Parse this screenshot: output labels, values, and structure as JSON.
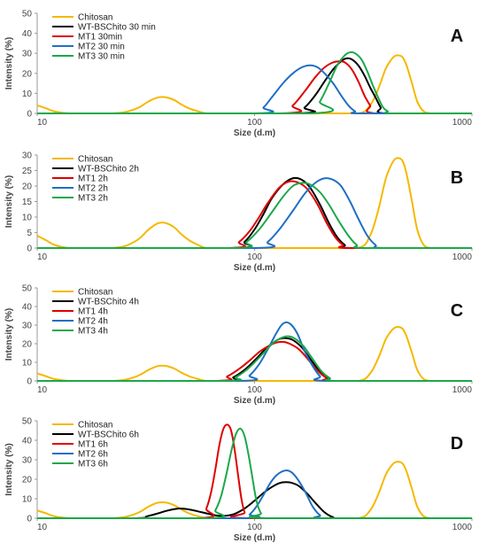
{
  "colors": {
    "Chitosan": "#F5B800",
    "WT": "#000000",
    "MT1": "#E00000",
    "MT2": "#1F6FC5",
    "MT3": "#1BA84A",
    "axis": "#9a9a9a",
    "text": "#444444"
  },
  "chart_data": [
    {
      "type": "line",
      "panel_label": "A",
      "xlabel": "Size (d.m)",
      "ylabel": "Intensity (%)",
      "xscale": "log",
      "xlim": [
        10,
        1000
      ],
      "ylim": [
        0,
        50
      ],
      "xticks": [
        "10",
        "100",
        "1000"
      ],
      "yticks": [
        "0",
        "10",
        "20",
        "30",
        "40",
        "50"
      ],
      "legend_position": "top-left",
      "series": [
        {
          "name": "Chitosan",
          "color": "Chitosan",
          "x": [
            10,
            11,
            12,
            14,
            16,
            18,
            20,
            22,
            25,
            28,
            30,
            32,
            34,
            36,
            38,
            40,
            43,
            46,
            50,
            55,
            60,
            70,
            100,
            200,
            300,
            340,
            370,
            400,
            420,
            440,
            460,
            480,
            500,
            530,
            560,
            600,
            650,
            700,
            1000
          ],
          "y": [
            4,
            2.5,
            1,
            0,
            0,
            0,
            0,
            0,
            0.5,
            2,
            3.5,
            5.5,
            7,
            8,
            8.2,
            7.8,
            6.5,
            4.5,
            2.5,
            1,
            0,
            0,
            0,
            0,
            0,
            4,
            12,
            22,
            26,
            28.5,
            29,
            28,
            24,
            15,
            6,
            1,
            0,
            0,
            0
          ]
        },
        {
          "name": "WT-BSChito 30 min",
          "color": "WT",
          "x": [
            10,
            150,
            170,
            190,
            210,
            230,
            250,
            265,
            280,
            300,
            320,
            340,
            360,
            380,
            400,
            1000
          ],
          "y": [
            0,
            0,
            3,
            9,
            16,
            22,
            26,
            27.5,
            27,
            24,
            19,
            13,
            8,
            3,
            0,
            0
          ]
        },
        {
          "name": "MT1 30min",
          "color": "MT1",
          "x": [
            10,
            130,
            150,
            170,
            190,
            210,
            230,
            245,
            260,
            280,
            300,
            320,
            340,
            360,
            1000
          ],
          "y": [
            0,
            0,
            4,
            11,
            18,
            23,
            25.5,
            26,
            25.5,
            22,
            16,
            9,
            4,
            0,
            0
          ]
        },
        {
          "name": "MT2 30 min",
          "color": "MT2",
          "x": [
            10,
            100,
            110,
            120,
            135,
            150,
            165,
            180,
            195,
            210,
            230,
            250,
            270,
            290,
            310,
            1000
          ],
          "y": [
            0,
            0,
            3,
            8,
            15,
            20,
            23,
            24,
            23,
            20,
            15,
            9,
            4,
            1,
            0,
            0
          ]
        },
        {
          "name": "MT3 30 min",
          "color": "MT3",
          "x": [
            10,
            180,
            200,
            220,
            240,
            260,
            275,
            290,
            310,
            330,
            350,
            370,
            390,
            410,
            430,
            1000
          ],
          "y": [
            0,
            0,
            6,
            15,
            24,
            29,
            30.5,
            30,
            27,
            21,
            14,
            8,
            3,
            1,
            0,
            0
          ]
        }
      ]
    },
    {
      "type": "line",
      "panel_label": "B",
      "xlabel": "Size (d.m)",
      "ylabel": "Intensity (%)",
      "xscale": "log",
      "xlim": [
        10,
        1000
      ],
      "ylim": [
        0,
        30
      ],
      "xticks": [
        "10",
        "100",
        "1000"
      ],
      "yticks": [
        "0",
        "5",
        "10",
        "15",
        "20",
        "25",
        "30"
      ],
      "legend_position": "top-left",
      "series": [
        {
          "name": "Chitosan",
          "color": "Chitosan",
          "x": [
            10,
            11,
            12,
            14,
            16,
            18,
            20,
            22,
            25,
            28,
            30,
            32,
            34,
            36,
            38,
            40,
            43,
            46,
            50,
            55,
            60,
            70,
            100,
            200,
            300,
            340,
            370,
            400,
            420,
            440,
            460,
            480,
            500,
            530,
            560,
            600,
            650,
            700,
            1000
          ],
          "y": [
            4,
            2.5,
            1,
            0,
            0,
            0,
            0,
            0,
            0.5,
            2,
            3.5,
            5.5,
            7,
            8,
            8.2,
            7.8,
            6.5,
            4.5,
            2.5,
            1,
            0,
            0,
            0,
            0,
            0,
            4,
            12,
            22,
            26,
            28.5,
            29,
            28,
            24,
            15,
            6,
            1,
            0,
            0,
            0
          ]
        },
        {
          "name": "WT-BSChito 2h",
          "color": "WT",
          "x": [
            10,
            80,
            90,
            100,
            110,
            120,
            135,
            150,
            165,
            180,
            200,
            220,
            240,
            260,
            280,
            1000
          ],
          "y": [
            0,
            0,
            2,
            6,
            11,
            16,
            20.5,
            22.5,
            22,
            19.5,
            14,
            8,
            3.5,
            1,
            0,
            0
          ]
        },
        {
          "name": "MT1 2h",
          "color": "MT1",
          "x": [
            10,
            75,
            85,
            95,
            105,
            115,
            130,
            145,
            160,
            175,
            195,
            215,
            235,
            255,
            275,
            1000
          ],
          "y": [
            0,
            0,
            2,
            5.5,
            10,
            14.5,
            19.5,
            21.5,
            21,
            19,
            14,
            8,
            3.5,
            1,
            0,
            0
          ]
        },
        {
          "name": "MT2 2h",
          "color": "MT2",
          "x": [
            10,
            100,
            115,
            130,
            150,
            170,
            190,
            210,
            230,
            250,
            275,
            300,
            330,
            360,
            390,
            1000
          ],
          "y": [
            0,
            0,
            2,
            6,
            12,
            17.5,
            21,
            22.5,
            22,
            20,
            15,
            9.5,
            4,
            1,
            0,
            0
          ]
        },
        {
          "name": "MT3 2h",
          "color": "MT3",
          "x": [
            10,
            80,
            92,
            105,
            120,
            135,
            150,
            165,
            180,
            200,
            220,
            245,
            270,
            295,
            320,
            1000
          ],
          "y": [
            0,
            0,
            2,
            6,
            11.5,
            16.5,
            20,
            21,
            20.5,
            18,
            14,
            8.5,
            4,
            1,
            0,
            0
          ]
        }
      ]
    },
    {
      "type": "line",
      "panel_label": "C",
      "xlabel": "Size (d.m)",
      "ylabel": "Intensity (%)",
      "xscale": "log",
      "xlim": [
        10,
        1000
      ],
      "ylim": [
        0,
        50
      ],
      "xticks": [
        "10",
        "100",
        "1000"
      ],
      "yticks": [
        "0",
        "10",
        "20",
        "30",
        "40",
        "50"
      ],
      "legend_position": "top-left",
      "series": [
        {
          "name": "Chitosan",
          "color": "Chitosan",
          "x": [
            10,
            11,
            12,
            14,
            16,
            18,
            20,
            22,
            25,
            28,
            30,
            32,
            34,
            36,
            38,
            40,
            43,
            46,
            50,
            55,
            60,
            70,
            100,
            200,
            300,
            340,
            370,
            400,
            420,
            440,
            460,
            480,
            500,
            530,
            560,
            600,
            650,
            700,
            1000
          ],
          "y": [
            4,
            2.5,
            1,
            0,
            0,
            0,
            0,
            0,
            0.5,
            2,
            3.5,
            5.5,
            7,
            8,
            8.2,
            7.8,
            6.5,
            4.5,
            2.5,
            1,
            0,
            0,
            0,
            0,
            0,
            4,
            12,
            22,
            26,
            28.5,
            29,
            28,
            24,
            15,
            6,
            1,
            0,
            0,
            0
          ]
        },
        {
          "name": "WT-BSChito 4h",
          "color": "WT",
          "x": [
            10,
            70,
            80,
            90,
            100,
            110,
            120,
            130,
            140,
            150,
            165,
            180,
            200,
            220,
            240,
            1000
          ],
          "y": [
            0,
            0,
            2,
            6,
            11,
            16,
            20,
            22.5,
            23,
            22,
            18,
            12,
            5,
            1,
            0,
            0
          ]
        },
        {
          "name": "MT1 4h",
          "color": "MT1",
          "x": [
            10,
            65,
            75,
            85,
            95,
            105,
            115,
            125,
            135,
            145,
            160,
            175,
            195,
            215,
            235,
            1000
          ],
          "y": [
            0,
            0,
            2.5,
            6.5,
            11,
            15.5,
            18.5,
            20.5,
            21,
            20,
            17,
            12,
            5.5,
            1.5,
            0,
            0
          ]
        },
        {
          "name": "MT2 4h",
          "color": "MT2",
          "x": [
            10,
            85,
            95,
            105,
            115,
            125,
            133,
            140,
            148,
            158,
            170,
            185,
            200,
            215,
            1000
          ],
          "y": [
            0,
            0,
            3,
            9,
            17,
            25,
            30,
            31.5,
            30,
            25,
            16,
            8,
            2.5,
            0,
            0
          ]
        },
        {
          "name": "MT3 4h",
          "color": "MT3",
          "x": [
            10,
            72,
            82,
            92,
            102,
            112,
            122,
            132,
            142,
            152,
            167,
            182,
            202,
            222,
            242,
            1000
          ],
          "y": [
            0,
            0,
            2,
            6,
            11,
            16,
            20.5,
            23,
            24,
            23,
            19,
            13,
            5.5,
            1.5,
            0,
            0
          ]
        }
      ]
    },
    {
      "type": "line",
      "panel_label": "D",
      "xlabel": "Size (d.m)",
      "ylabel": "Intensity (%)",
      "xscale": "log",
      "xlim": [
        10,
        1000
      ],
      "ylim": [
        0,
        50
      ],
      "xticks": [
        "10",
        "100",
        "1000"
      ],
      "yticks": [
        "0",
        "10",
        "20",
        "30",
        "40",
        "50"
      ],
      "legend_position": "top-left",
      "series": [
        {
          "name": "Chitosan",
          "color": "Chitosan",
          "x": [
            10,
            11,
            12,
            14,
            16,
            18,
            20,
            22,
            25,
            28,
            30,
            32,
            34,
            36,
            38,
            40,
            43,
            46,
            50,
            55,
            60,
            70,
            100,
            200,
            300,
            340,
            370,
            400,
            420,
            440,
            460,
            480,
            500,
            530,
            560,
            600,
            650,
            700,
            1000
          ],
          "y": [
            4,
            2.5,
            1,
            0,
            0,
            0,
            0,
            0,
            0.5,
            2,
            3.5,
            5.5,
            7,
            8,
            8.2,
            7.8,
            6.5,
            4.5,
            2.5,
            1,
            0,
            0,
            0,
            0,
            0,
            4,
            12,
            22,
            26,
            28.5,
            29,
            28,
            24,
            15,
            6,
            1,
            0,
            0,
            0
          ]
        },
        {
          "name": "WT-BSChito 6h",
          "color": "WT",
          "x": [
            10,
            28,
            32,
            36,
            40,
            45,
            50,
            55,
            60,
            66,
            72,
            80,
            90,
            100,
            110,
            120,
            130,
            140,
            150,
            160,
            175,
            190,
            210,
            230,
            250,
            1000
          ],
          "y": [
            0,
            0,
            1,
            2.5,
            4,
            5,
            4.5,
            3.5,
            2.5,
            1.5,
            1.2,
            2,
            5,
            9,
            13,
            16,
            18,
            18.5,
            18,
            16.5,
            12.5,
            8,
            3,
            0.5,
            0,
            0
          ]
        },
        {
          "name": "MT1 6h",
          "color": "MT1",
          "x": [
            10,
            56,
            60,
            63,
            66,
            69,
            72,
            75,
            78,
            81,
            84,
            87,
            90,
            94,
            1000
          ],
          "y": [
            0,
            0,
            5,
            13,
            25,
            38,
            46,
            48,
            45,
            35,
            22,
            10,
            3,
            0,
            0
          ]
        },
        {
          "name": "MT2 6h",
          "color": "MT2",
          "x": [
            10,
            88,
            95,
            102,
            110,
            118,
            126,
            134,
            142,
            150,
            160,
            172,
            185,
            200,
            215,
            1000
          ],
          "y": [
            0,
            0,
            2,
            6,
            12,
            18,
            22,
            24,
            24.5,
            23,
            19,
            13,
            6,
            1.5,
            0,
            0
          ]
        },
        {
          "name": "MT3 6h",
          "color": "MT3",
          "x": [
            10,
            62,
            66,
            70,
            74,
            78,
            82,
            86,
            90,
            94,
            98,
            102,
            107,
            113,
            1000
          ],
          "y": [
            0,
            0,
            4,
            11,
            22,
            34,
            43,
            46,
            42,
            32,
            20,
            9,
            2.5,
            0,
            0
          ]
        }
      ]
    }
  ]
}
